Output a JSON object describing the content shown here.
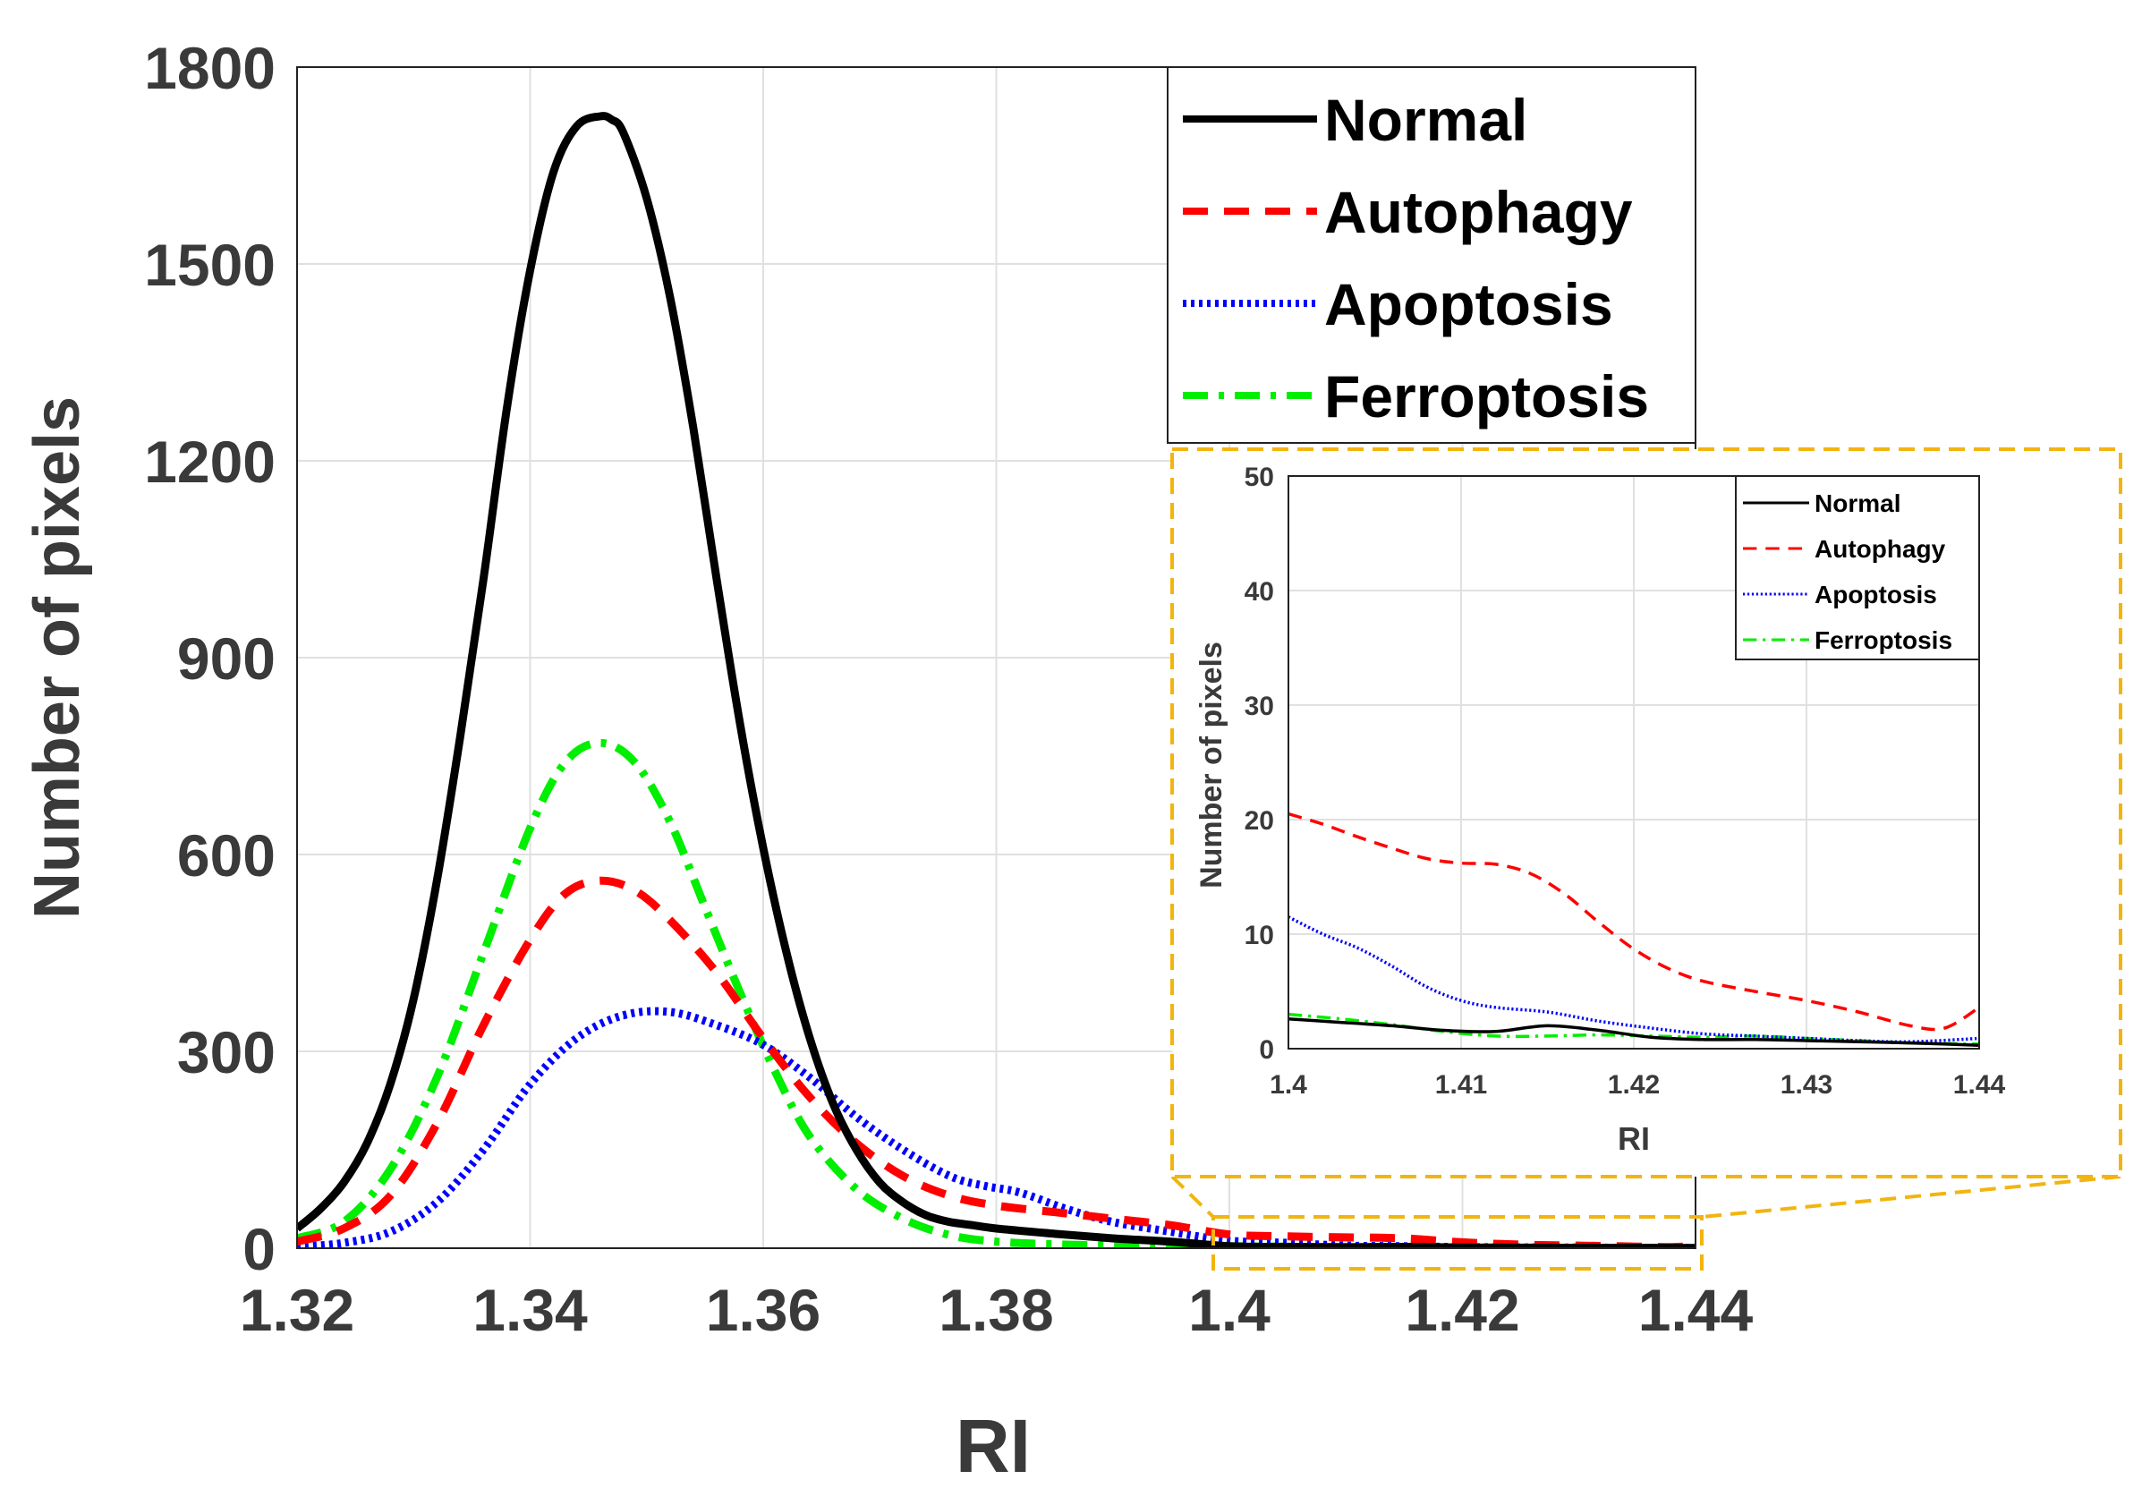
{
  "chart_data": [
    {
      "type": "line",
      "id": "main",
      "title": "",
      "xlabel": "RI",
      "ylabel": "Number of pixels",
      "xlim": [
        1.32,
        1.44
      ],
      "ylim": [
        0,
        1800
      ],
      "xticks": [
        1.32,
        1.34,
        1.36,
        1.38,
        1.4,
        1.42,
        1.44
      ],
      "xtick_labels": [
        "1.32",
        "1.34",
        "1.36",
        "1.38",
        "1.4",
        "1.42",
        "1.44"
      ],
      "yticks": [
        0,
        300,
        600,
        900,
        1200,
        1500,
        1800
      ],
      "ytick_labels": [
        "0",
        "300",
        "600",
        "900",
        "1200",
        "1500",
        "1800"
      ],
      "grid": true,
      "legend_position": "top-right",
      "series": [
        {
          "name": "Normal",
          "style": "solid",
          "x": [
            1.32,
            1.322,
            1.324,
            1.326,
            1.328,
            1.33,
            1.332,
            1.334,
            1.336,
            1.338,
            1.34,
            1.342,
            1.344,
            1.346,
            1.347,
            1.348,
            1.35,
            1.352,
            1.354,
            1.356,
            1.358,
            1.36,
            1.362,
            1.364,
            1.366,
            1.368,
            1.37,
            1.372,
            1.374,
            1.376,
            1.378,
            1.38,
            1.385,
            1.39,
            1.395,
            1.4,
            1.405,
            1.41,
            1.415,
            1.42,
            1.425,
            1.43,
            1.435,
            1.44
          ],
          "y": [
            30,
            60,
            100,
            160,
            250,
            380,
            560,
            780,
            1020,
            1280,
            1490,
            1640,
            1710,
            1725,
            1720,
            1700,
            1600,
            1450,
            1250,
            1020,
            800,
            610,
            450,
            320,
            220,
            150,
            100,
            70,
            50,
            40,
            35,
            30,
            22,
            15,
            10,
            3,
            2,
            1.5,
            2,
            1,
            0.8,
            0.6,
            0.5,
            0.4
          ]
        },
        {
          "name": "Autophagy",
          "style": "dashed",
          "x": [
            1.32,
            1.324,
            1.328,
            1.332,
            1.336,
            1.34,
            1.343,
            1.346,
            1.349,
            1.352,
            1.356,
            1.36,
            1.364,
            1.368,
            1.372,
            1.376,
            1.38,
            1.385,
            1.39,
            1.395,
            1.4,
            1.405,
            1.41,
            1.413,
            1.416,
            1.42,
            1.425,
            1.43,
            1.435,
            1.438,
            1.44
          ],
          "y": [
            10,
            30,
            80,
            190,
            340,
            470,
            540,
            560,
            545,
            500,
            420,
            320,
            230,
            160,
            110,
            80,
            65,
            55,
            45,
            35,
            21,
            18,
            16.5,
            16,
            14,
            9,
            5.5,
            4,
            2.5,
            1.8,
            3.5
          ]
        },
        {
          "name": "Apoptosis",
          "style": "dotted",
          "x": [
            1.32,
            1.324,
            1.328,
            1.332,
            1.336,
            1.34,
            1.344,
            1.348,
            1.352,
            1.356,
            1.36,
            1.364,
            1.368,
            1.372,
            1.376,
            1.379,
            1.382,
            1.386,
            1.39,
            1.395,
            1.4,
            1.405,
            1.41,
            1.415,
            1.42,
            1.425,
            1.43,
            1.435,
            1.44
          ],
          "y": [
            2,
            8,
            25,
            70,
            150,
            250,
            320,
            355,
            360,
            340,
            310,
            260,
            200,
            150,
            110,
            95,
            85,
            60,
            40,
            25,
            11.5,
            8,
            4,
            3,
            1.8,
            1.2,
            0.9,
            0.6,
            0.7
          ]
        },
        {
          "name": "Ferroptosis",
          "style": "dashdot",
          "x": [
            1.32,
            1.324,
            1.328,
            1.332,
            1.336,
            1.34,
            1.343,
            1.346,
            1.349,
            1.352,
            1.355,
            1.358,
            1.361,
            1.364,
            1.368,
            1.372,
            1.376,
            1.38,
            1.385,
            1.39,
            1.395,
            1.4,
            1.405,
            1.41,
            1.415,
            1.42,
            1.425,
            1.43,
            1.435,
            1.44
          ],
          "y": [
            15,
            40,
            120,
            260,
            450,
            640,
            740,
            770,
            740,
            650,
            520,
            390,
            270,
            170,
            90,
            45,
            20,
            10,
            6,
            4,
            3.5,
            3,
            2.3,
            1.5,
            1.2,
            1,
            0.9,
            0.7,
            0.5,
            0.4
          ]
        }
      ]
    },
    {
      "type": "line",
      "id": "inset",
      "title": "",
      "xlabel": "RI",
      "ylabel": "Number of pixels",
      "xlim": [
        1.4,
        1.44
      ],
      "ylim": [
        0,
        50
      ],
      "xticks": [
        1.4,
        1.41,
        1.42,
        1.43,
        1.44
      ],
      "xtick_labels": [
        "1.4",
        "1.41",
        "1.42",
        "1.43",
        "1.44"
      ],
      "yticks": [
        0,
        10,
        20,
        30,
        40,
        50
      ],
      "ytick_labels": [
        "0",
        "10",
        "20",
        "30",
        "40",
        "50"
      ],
      "grid": true,
      "legend_position": "top-right",
      "series": [
        {
          "name": "Normal",
          "style": "solid",
          "x": [
            1.4,
            1.403,
            1.406,
            1.409,
            1.412,
            1.415,
            1.418,
            1.421,
            1.424,
            1.427,
            1.43,
            1.433,
            1.436,
            1.44
          ],
          "y": [
            2.6,
            2.3,
            2.0,
            1.6,
            1.5,
            2.0,
            1.6,
            1.0,
            0.8,
            0.8,
            0.7,
            0.6,
            0.5,
            0.3
          ]
        },
        {
          "name": "Autophagy",
          "style": "dashed",
          "x": [
            1.4,
            1.402,
            1.404,
            1.406,
            1.408,
            1.41,
            1.412,
            1.414,
            1.416,
            1.418,
            1.42,
            1.422,
            1.424,
            1.427,
            1.43,
            1.433,
            1.436,
            1.438,
            1.44
          ],
          "y": [
            20.5,
            19.6,
            18.5,
            17.5,
            16.6,
            16.2,
            16.1,
            15.3,
            13.5,
            11.0,
            8.7,
            7.0,
            5.9,
            5.0,
            4.2,
            3.2,
            2.0,
            1.8,
            3.6
          ]
        },
        {
          "name": "Apoptosis",
          "style": "dotted",
          "x": [
            1.4,
            1.402,
            1.404,
            1.406,
            1.408,
            1.41,
            1.412,
            1.415,
            1.418,
            1.421,
            1.424,
            1.427,
            1.43,
            1.433,
            1.436,
            1.44
          ],
          "y": [
            11.5,
            10.0,
            8.8,
            7.2,
            5.4,
            4.2,
            3.6,
            3.2,
            2.4,
            1.8,
            1.3,
            1.1,
            0.9,
            0.7,
            0.6,
            0.9
          ]
        },
        {
          "name": "Ferroptosis",
          "style": "dashdot",
          "x": [
            1.4,
            1.403,
            1.406,
            1.409,
            1.412,
            1.415,
            1.418,
            1.421,
            1.424,
            1.427,
            1.43,
            1.433,
            1.436,
            1.44
          ],
          "y": [
            3.0,
            2.6,
            2.1,
            1.5,
            1.1,
            1.1,
            1.2,
            1.1,
            1.0,
            1.1,
            0.9,
            0.7,
            0.5,
            0.4
          ]
        }
      ]
    }
  ],
  "colors": {
    "Normal": "#000000",
    "Autophagy": "#ff0000",
    "Apoptosis": "#0000ff",
    "Ferroptosis": "#00ee00",
    "zoom_box": "#f2b40f",
    "grid": "#e0e0e0",
    "text": "#3a3a3a"
  }
}
